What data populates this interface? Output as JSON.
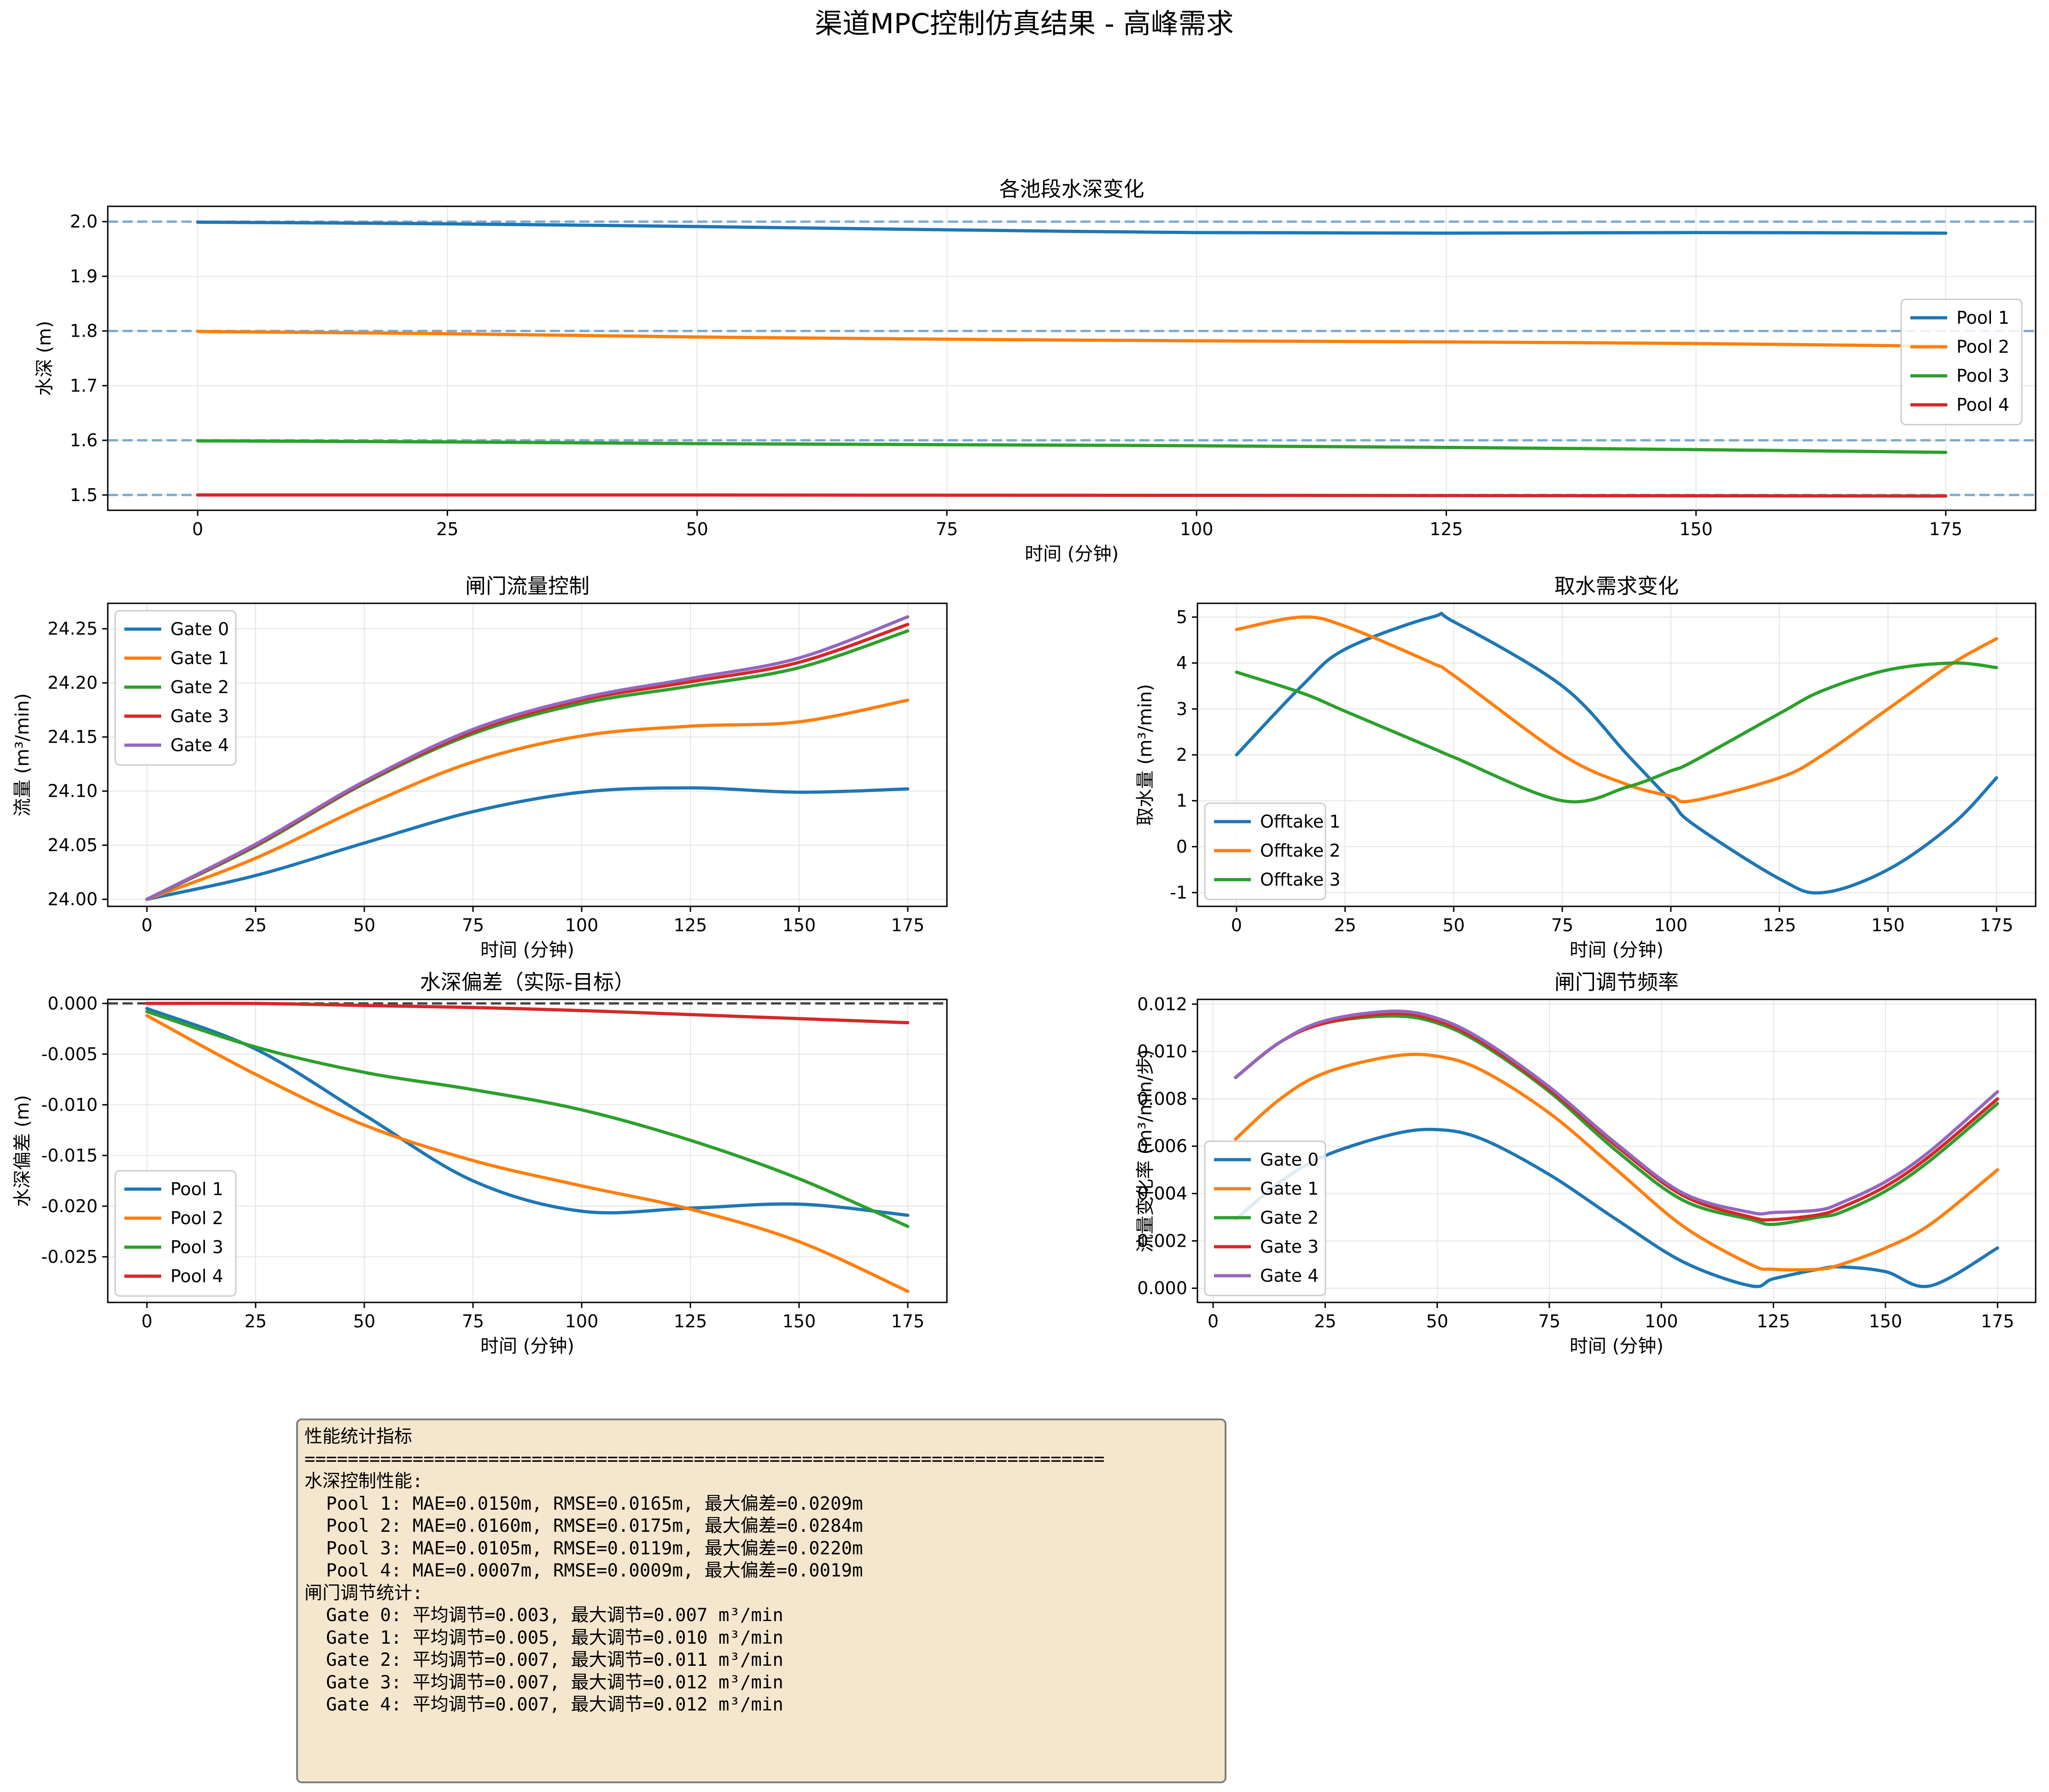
{
  "figure": {
    "title": "渠道MPC控制仿真结果 - 高峰需求"
  },
  "colors": {
    "c0": "#1f77b4",
    "c1": "#ff7f0e",
    "c2": "#2ca02c",
    "c3": "#d62728",
    "c4": "#9467bd",
    "grid": "#e5e5e5",
    "target": "#7ea9cc",
    "zero": "#444444",
    "box_bg": "#f5e6ce",
    "box_border": "#808080"
  },
  "chart_data": [
    {
      "id": "depth",
      "type": "line",
      "title": "各池段水深变化",
      "xlabel": "时间 (分钟)",
      "ylabel": "水深 (m)",
      "xlim": [
        -9,
        184
      ],
      "ylim": [
        1.472,
        2.028
      ],
      "xticks": [
        0,
        25,
        50,
        75,
        100,
        125,
        150,
        175
      ],
      "yticks": [
        1.5,
        1.6,
        1.7,
        1.8,
        1.9,
        2.0
      ],
      "ytick_decimals": 1,
      "grid": true,
      "legend": "center-right",
      "reference_lines": {
        "style": "dashed",
        "values": [
          2.0,
          1.8,
          1.6,
          1.5
        ]
      },
      "x": [
        0,
        25,
        50,
        75,
        100,
        125,
        150,
        175
      ],
      "series": [
        {
          "name": "Pool 1",
          "color": "#1f77b4",
          "values": [
            1.999,
            1.996,
            1.991,
            1.985,
            1.98,
            1.979,
            1.98,
            1.979
          ]
        },
        {
          "name": "Pool 2",
          "color": "#ff7f0e",
          "values": [
            1.799,
            1.795,
            1.789,
            1.785,
            1.782,
            1.78,
            1.777,
            1.772
          ]
        },
        {
          "name": "Pool 3",
          "color": "#2ca02c",
          "values": [
            1.599,
            1.597,
            1.594,
            1.592,
            1.59,
            1.587,
            1.583,
            1.578
          ]
        },
        {
          "name": "Pool 4",
          "color": "#d62728",
          "values": [
            1.5,
            1.5,
            1.5,
            1.4996,
            1.4993,
            1.4989,
            1.4985,
            1.4981
          ]
        }
      ]
    },
    {
      "id": "gate_flow",
      "type": "line",
      "title": "闸门流量控制",
      "xlabel": "时间 (分钟)",
      "ylabel": "流量 (m³/min)",
      "xlim": [
        -9,
        184
      ],
      "ylim": [
        23.9935,
        24.2735
      ],
      "xticks": [
        0,
        25,
        50,
        75,
        100,
        125,
        150,
        175
      ],
      "yticks": [
        24.0,
        24.05,
        24.1,
        24.15,
        24.2,
        24.25
      ],
      "ytick_decimals": 2,
      "grid": true,
      "legend": "upper-left",
      "x": [
        0,
        25,
        50,
        75,
        100,
        125,
        150,
        175
      ],
      "series": [
        {
          "name": "Gate 0",
          "color": "#1f77b4",
          "values": [
            24.0,
            24.022,
            24.052,
            24.081,
            24.099,
            24.103,
            24.099,
            24.102
          ]
        },
        {
          "name": "Gate 1",
          "color": "#ff7f0e",
          "values": [
            24.0,
            24.038,
            24.086,
            24.127,
            24.151,
            24.16,
            24.164,
            24.184
          ]
        },
        {
          "name": "Gate 2",
          "color": "#2ca02c",
          "values": [
            24.0,
            24.049,
            24.107,
            24.153,
            24.181,
            24.197,
            24.214,
            24.248
          ]
        },
        {
          "name": "Gate 3",
          "color": "#d62728",
          "values": [
            24.0,
            24.05,
            24.108,
            24.155,
            24.184,
            24.201,
            24.219,
            24.254
          ]
        },
        {
          "name": "Gate 4",
          "color": "#9467bd",
          "values": [
            24.0,
            24.051,
            24.109,
            24.157,
            24.186,
            24.204,
            24.223,
            24.261
          ]
        }
      ]
    },
    {
      "id": "demand",
      "type": "line",
      "title": "取水需求变化",
      "xlabel": "时间 (分钟)",
      "ylabel": "取水量 (m³/min)",
      "xlim": [
        -9,
        184
      ],
      "ylim": [
        -1.3,
        5.3
      ],
      "xticks": [
        0,
        25,
        50,
        75,
        100,
        125,
        150,
        175
      ],
      "yticks": [
        -1,
        0,
        1,
        2,
        3,
        4,
        5
      ],
      "ytick_decimals": 0,
      "grid": true,
      "legend": "lower-left",
      "x": [
        0,
        15,
        25,
        45,
        50,
        75,
        90,
        100,
        105,
        125,
        135,
        150,
        165,
        175
      ],
      "series": [
        {
          "name": "Offtake 1",
          "color": "#1f77b4",
          "values": [
            2.0,
            3.5,
            4.3,
            5.0,
            4.9,
            3.5,
            2.0,
            1.0,
            0.5,
            -0.7,
            -1.0,
            -0.5,
            0.5,
            1.5
          ]
        },
        {
          "name": "Offtake 2",
          "color": "#ff7f0e",
          "values": [
            4.73,
            5.0,
            4.8,
            4.0,
            3.73,
            2.0,
            1.35,
            1.1,
            1.0,
            1.5,
            2.0,
            3.0,
            4.0,
            4.53
          ]
        },
        {
          "name": "Offtake 3",
          "color": "#2ca02c",
          "values": [
            3.8,
            3.35,
            2.95,
            2.15,
            1.95,
            1.0,
            1.3,
            1.65,
            1.85,
            2.9,
            3.4,
            3.85,
            4.0,
            3.9
          ]
        }
      ]
    },
    {
      "id": "deviation",
      "type": "line",
      "title": "水深偏差（实际-目标）",
      "xlabel": "时间 (分钟)",
      "ylabel": "水深偏差 (m)",
      "xlim": [
        -9,
        184
      ],
      "ylim": [
        -0.0295,
        0.0004
      ],
      "xticks": [
        0,
        25,
        50,
        75,
        100,
        125,
        150,
        175
      ],
      "yticks": [
        0.0,
        -0.005,
        -0.01,
        -0.015,
        -0.02,
        -0.025
      ],
      "ytick_decimals": 3,
      "grid": true,
      "legend": "lower-left",
      "reference_lines": {
        "style": "dashed",
        "values": [
          0.0
        ]
      },
      "x": [
        0,
        25,
        50,
        75,
        100,
        125,
        150,
        175
      ],
      "series": [
        {
          "name": "Pool 1",
          "color": "#1f77b4",
          "values": [
            -0.0005,
            -0.0045,
            -0.011,
            -0.0175,
            -0.0205,
            -0.0202,
            -0.0198,
            -0.0209
          ]
        },
        {
          "name": "Pool 2",
          "color": "#ff7f0e",
          "values": [
            -0.0012,
            -0.007,
            -0.012,
            -0.0155,
            -0.018,
            -0.0203,
            -0.0235,
            -0.0284
          ]
        },
        {
          "name": "Pool 3",
          "color": "#2ca02c",
          "values": [
            -0.0008,
            -0.0043,
            -0.0068,
            -0.0085,
            -0.0105,
            -0.0135,
            -0.0173,
            -0.022
          ]
        },
        {
          "name": "Pool 4",
          "color": "#d62728",
          "values": [
            0.0,
            0.0,
            -0.0002,
            -0.0004,
            -0.0007,
            -0.0011,
            -0.0015,
            -0.0019
          ]
        }
      ]
    },
    {
      "id": "gate_rate",
      "type": "line",
      "title": "闸门调节频率",
      "xlabel": "时间 (分钟)",
      "ylabel": "流量变化率 (m³/min/步)",
      "xlim": [
        -3.5,
        183.5
      ],
      "ylim": [
        -0.0006,
        0.0122
      ],
      "xticks": [
        0,
        25,
        50,
        75,
        100,
        125,
        150,
        175
      ],
      "yticks": [
        0.0,
        0.002,
        0.004,
        0.006,
        0.008,
        0.01,
        0.012
      ],
      "ytick_decimals": 3,
      "grid": true,
      "legend": "lower-left",
      "x": [
        5,
        15,
        25,
        40,
        50,
        60,
        75,
        90,
        105,
        120,
        125,
        135,
        140,
        150,
        160,
        175
      ],
      "series": [
        {
          "name": "Gate 0",
          "color": "#1f77b4",
          "values": [
            0.0029,
            0.0045,
            0.0056,
            0.0065,
            0.0067,
            0.0063,
            0.0048,
            0.0029,
            0.0011,
            0.0001,
            0.0004,
            0.0008,
            0.0009,
            0.0007,
            0.0001,
            0.0017
          ]
        },
        {
          "name": "Gate 1",
          "color": "#ff7f0e",
          "values": [
            0.0063,
            0.008,
            0.0091,
            0.0098,
            0.0098,
            0.0092,
            0.0074,
            0.005,
            0.0026,
            0.001,
            0.0008,
            0.0008,
            0.001,
            0.0017,
            0.0027,
            0.005
          ]
        },
        {
          "name": "Gate 2",
          "color": "#2ca02c",
          "values": [
            0.0089,
            0.0104,
            0.0112,
            0.0115,
            0.0112,
            0.0103,
            0.0083,
            0.0058,
            0.0037,
            0.0029,
            0.0027,
            0.003,
            0.0032,
            0.0041,
            0.0054,
            0.0078
          ]
        },
        {
          "name": "Gate 3",
          "color": "#d62728",
          "values": [
            0.0089,
            0.0104,
            0.0112,
            0.0116,
            0.0113,
            0.0104,
            0.0084,
            0.006,
            0.0039,
            0.003,
            0.0029,
            0.0031,
            0.0034,
            0.0043,
            0.0056,
            0.008
          ]
        },
        {
          "name": "Gate 4",
          "color": "#9467bd",
          "values": [
            0.0089,
            0.0104,
            0.0113,
            0.0117,
            0.0114,
            0.0105,
            0.0085,
            0.0061,
            0.004,
            0.0032,
            0.0032,
            0.0033,
            0.0036,
            0.0045,
            0.0058,
            0.0083
          ]
        }
      ]
    }
  ],
  "stats": {
    "lines": [
      "性能统计指标",
      "==========================================================================",
      "",
      "水深控制性能:",
      "  Pool 1: MAE=0.0150m, RMSE=0.0165m, 最大偏差=0.0209m",
      "  Pool 2: MAE=0.0160m, RMSE=0.0175m, 最大偏差=0.0284m",
      "  Pool 3: MAE=0.0105m, RMSE=0.0119m, 最大偏差=0.0220m",
      "  Pool 4: MAE=0.0007m, RMSE=0.0009m, 最大偏差=0.0019m",
      "",
      "闸门调节统计:",
      "  Gate 0: 平均调节=0.003, 最大调节=0.007 m³/min",
      "  Gate 1: 平均调节=0.005, 最大调节=0.010 m³/min",
      "  Gate 2: 平均调节=0.007, 最大调节=0.011 m³/min",
      "  Gate 3: 平均调节=0.007, 最大调节=0.012 m³/min",
      "  Gate 4: 平均调节=0.007, 最大调节=0.012 m³/min"
    ]
  }
}
